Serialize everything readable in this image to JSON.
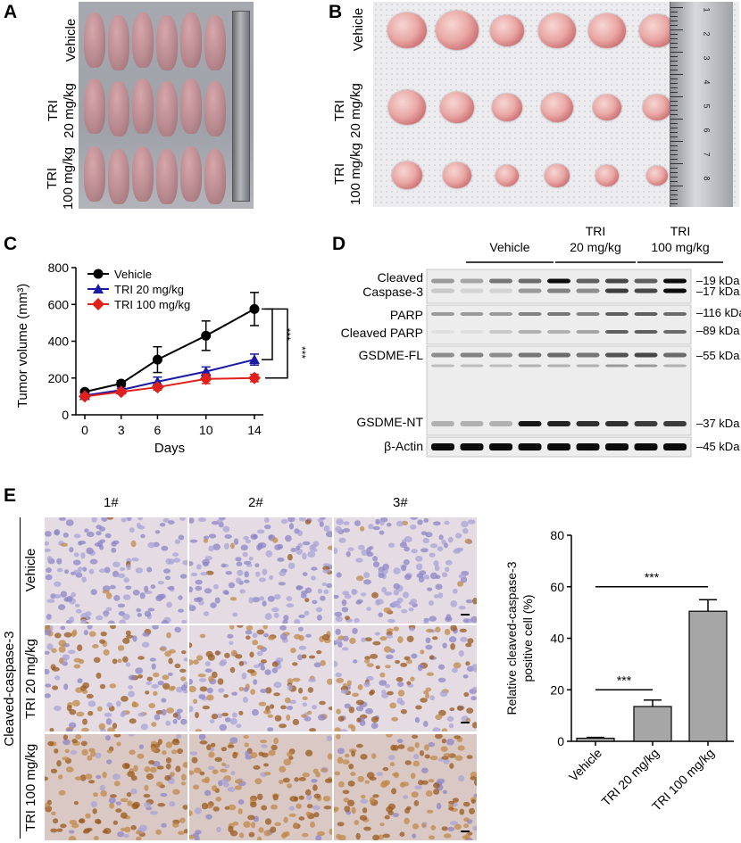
{
  "panels": {
    "A": {
      "label": "A",
      "group_labels": [
        "Vehicle",
        "TRI\n20 mg/kg",
        "TRI\n100 mg/kg"
      ]
    },
    "B": {
      "label": "B",
      "group_labels": [
        "Vehicle",
        "TRI\n20 mg/kg",
        "TRI\n100 mg/kg"
      ],
      "ruler_numbers": [
        "1",
        "2",
        "3",
        "4",
        "5",
        "6",
        "7",
        "8"
      ]
    },
    "C": {
      "label": "C",
      "significance": [
        "***",
        "***"
      ]
    },
    "D": {
      "label": "D",
      "group_headers": [
        "Vehicle",
        "TRI\n20 mg/kg",
        "TRI\n100 mg/kg"
      ],
      "band_labels": [
        "Cleaved",
        "Caspase-3",
        "PARP",
        "Cleaved PARP",
        "GSDME-FL",
        "GSDME-NT",
        "β-Actin"
      ],
      "kda_labels": [
        "–19 kDa",
        "–17 kDa",
        "–116 kDa",
        "–89 kDa",
        "–55 kDa",
        "–37 kDa",
        "–45 kDa"
      ]
    },
    "E": {
      "label": "E",
      "column_headers": [
        "1#",
        "2#",
        "3#"
      ],
      "row_labels": [
        "Vehicle",
        "TRI 20 mg/kg",
        "TRI 100 mg/kg"
      ],
      "side_label": "Cleaved-caspase-3",
      "significance": [
        "***",
        "***"
      ]
    }
  },
  "chart_data": [
    {
      "type": "line",
      "panel": "C",
      "xlabel": "Days",
      "ylabel": "Tumor volume (mm³)",
      "x": [
        0,
        3,
        6,
        10,
        14
      ],
      "xticks": [
        "0",
        "3",
        "6",
        "10",
        "14"
      ],
      "yticks": [
        "0",
        "200",
        "400",
        "600",
        "800"
      ],
      "ylim": [
        0,
        800
      ],
      "legend_position": "top-left",
      "series": [
        {
          "name": "Vehicle",
          "color": "#000000",
          "marker": "circle",
          "values": [
            125,
            170,
            300,
            430,
            575
          ],
          "errors": [
            10,
            15,
            70,
            80,
            90
          ]
        },
        {
          "name": "TRI 20 mg/kg",
          "color": "#1a1aa6",
          "marker": "triangle",
          "values": [
            105,
            135,
            180,
            235,
            300
          ],
          "errors": [
            10,
            10,
            25,
            25,
            30
          ]
        },
        {
          "name": "TRI 100 mg/kg",
          "color": "#e0201b",
          "marker": "diamond",
          "values": [
            100,
            125,
            150,
            195,
            200
          ],
          "errors": [
            10,
            10,
            15,
            25,
            20
          ]
        }
      ]
    },
    {
      "type": "bar",
      "panel": "E",
      "categories": [
        "Vehicle",
        "TRI 20 mg/kg",
        "TRI 100 mg/kg"
      ],
      "values": [
        1.2,
        13.5,
        50.5
      ],
      "errors": [
        0.3,
        2.5,
        4.5
      ],
      "ylabel": "Relative cleaved-caspase-3\npositive cell (%)",
      "xlabel": "",
      "yticks": [
        "0",
        "20",
        "40",
        "60",
        "80"
      ],
      "ylim": [
        0,
        80
      ],
      "bar_color": "#a6a6a6"
    }
  ]
}
